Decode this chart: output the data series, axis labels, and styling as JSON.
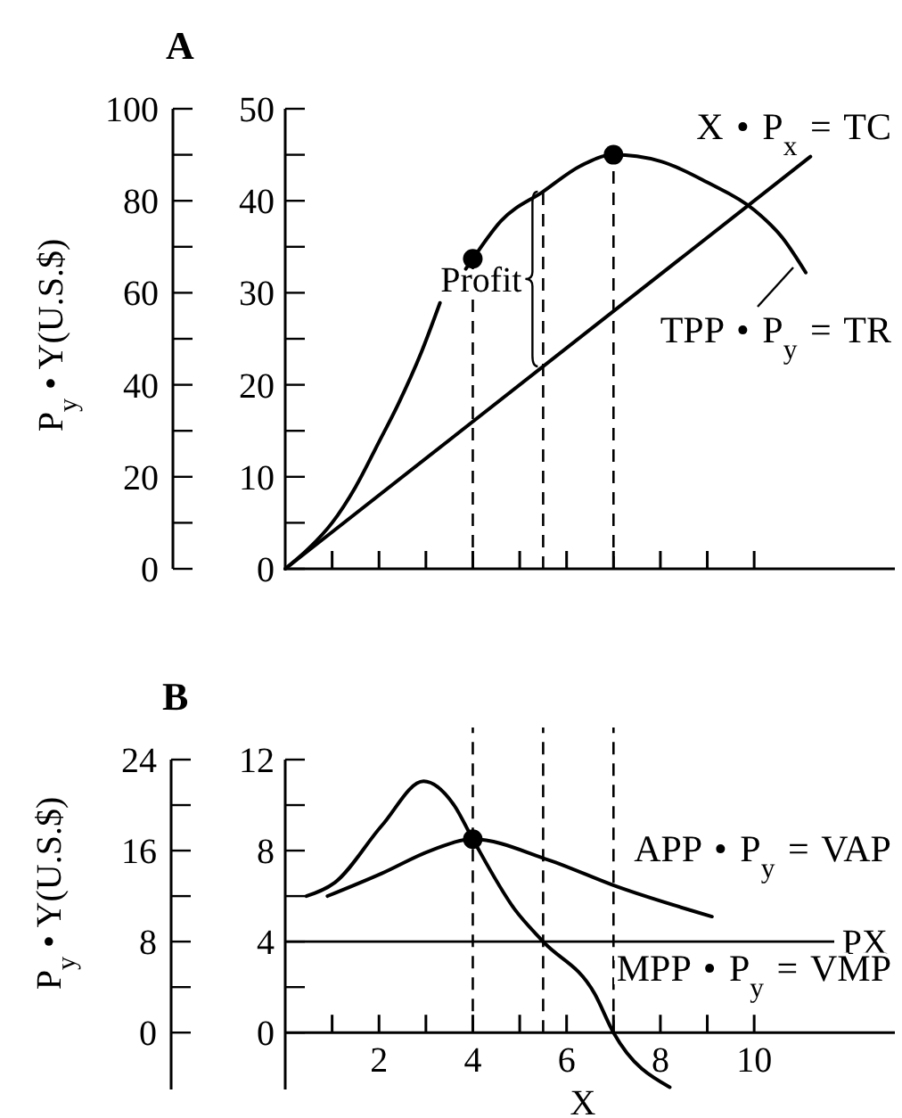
{
  "chart_data": [
    {
      "type": "line",
      "title": "A",
      "y2label": "P$_{y}$ • Y(U.S.$)",
      "xlim": [
        0,
        13
      ],
      "xticks": [
        {
          "value": 1,
          "label": null
        },
        {
          "value": 2,
          "label": null
        },
        {
          "value": 3,
          "label": null
        },
        {
          "value": 4,
          "label": null
        },
        {
          "value": 5,
          "label": null
        },
        {
          "value": 6,
          "label": null
        },
        {
          "value": 7,
          "label": null
        },
        {
          "value": 8,
          "label": null
        },
        {
          "value": 9,
          "label": null
        },
        {
          "value": 10,
          "label": null
        }
      ],
      "tick_labels": "y",
      "ylim": [
        0,
        50
      ],
      "yticks": [
        0,
        {
          "value": 5,
          "label": null
        },
        10,
        {
          "value": 15,
          "label": null
        },
        20,
        {
          "value": 25,
          "label": null
        },
        30,
        {
          "value": 35,
          "label": null
        },
        40,
        {
          "value": 45,
          "label": null
        },
        50
      ],
      "y2lim": [
        0,
        100
      ],
      "y2ticks": [
        0,
        {
          "value": 10,
          "label": null
        },
        20,
        {
          "value": 30,
          "label": null
        },
        40,
        {
          "value": 50,
          "label": null
        },
        60,
        {
          "value": 70,
          "label": null
        },
        80,
        {
          "value": 90,
          "label": null
        },
        100
      ],
      "series": [
        {
          "name": "TPP • P$_{y}$ = TR",
          "color": "#000000",
          "x": [
            0,
            0.5,
            1,
            1.5,
            2,
            2.4,
            2.9,
            3.3,
            3.6,
            3.85,
            4,
            4.6,
            5.5,
            6.3,
            7,
            8,
            9,
            10,
            10.6,
            11.1
          ],
          "values": [
            0,
            2.2,
            5,
            8.9,
            13.8,
            17.8,
            23.5,
            28.9,
            null,
            32.6,
            33.7,
            37.8,
            41,
            43.8,
            45,
            44.3,
            42,
            39,
            36,
            32.2
          ]
        },
        {
          "name": "X • P$_{x}$ = TC",
          "color": "#000000",
          "x": [
            0,
            11.2
          ],
          "values": [
            0,
            44.8
          ]
        },
        {
          "type": "scatter",
          "color": "#000000",
          "marker": "circle",
          "x": [
            4,
            7
          ],
          "values": [
            33.7,
            45
          ]
        }
      ],
      "ref_lines": [
        {
          "axis": "x",
          "value": 4,
          "line_style": "dashed"
        },
        {
          "axis": "x",
          "value": 5.5,
          "line_style": "dashed"
        },
        {
          "axis": "x",
          "value": 7,
          "line_style": "dashed"
        }
      ],
      "annotations": [
        {
          "text": "Profit",
          "x": 5.5,
          "y": 31.5
        }
      ]
    },
    {
      "type": "line",
      "title": "B",
      "y2label": "P$_{y}$ • Y(U.S.$)",
      "xlabel": "X",
      "xlim": [
        0,
        13
      ],
      "xticks": [
        {
          "value": 1,
          "label": null
        },
        2,
        {
          "value": 3,
          "label": null
        },
        4,
        {
          "value": 5,
          "label": null
        },
        6,
        {
          "value": 7,
          "label": null
        },
        8,
        {
          "value": 9,
          "label": null
        },
        10
      ],
      "ylim": [
        -2.5,
        12
      ],
      "yticks": [
        0,
        {
          "value": 2,
          "label": null
        },
        4,
        {
          "value": 6,
          "label": null
        },
        8,
        {
          "value": 10,
          "label": null
        },
        12
      ],
      "y2lim": [
        -5,
        24
      ],
      "y2ticks": [
        0,
        {
          "value": 4,
          "label": null
        },
        8,
        {
          "value": 12,
          "label": null
        },
        16,
        {
          "value": 20,
          "label": null
        },
        24
      ],
      "series": [
        {
          "name": "MPP • P$_{y}$ = VMP",
          "color": "#000000",
          "x": [
            0.45,
            1.06,
            2.06,
            2.95,
            3.6,
            4,
            4.9,
            5.5,
            6.6,
            7,
            8.2
          ],
          "values": [
            6,
            6.6,
            9.1,
            11.05,
            10,
            8.5,
            5.4,
            4,
            1.7,
            0,
            -2.4
          ]
        },
        {
          "name": "APP • P$_{y}$ = VAP",
          "color": "#000000",
          "x": [
            0.9,
            2.06,
            3.1,
            4,
            5.6,
            7.1,
            9.1
          ],
          "values": [
            6,
            7,
            8,
            8.5,
            7.6,
            6.4,
            5.1
          ]
        },
        {
          "type": "scatter",
          "color": "#000000",
          "marker": "circle",
          "x": [
            4
          ],
          "values": [
            8.5
          ]
        }
      ],
      "ref_lines": [
        {
          "axis": "y",
          "value": 4,
          "label": "PX",
          "line_style": "solid"
        },
        {
          "axis": "x",
          "value": 4,
          "line_style": "dashed"
        },
        {
          "axis": "x",
          "value": 5.5,
          "line_style": "dashed"
        },
        {
          "axis": "x",
          "value": 7,
          "line_style": "dashed"
        }
      ]
    }
  ]
}
